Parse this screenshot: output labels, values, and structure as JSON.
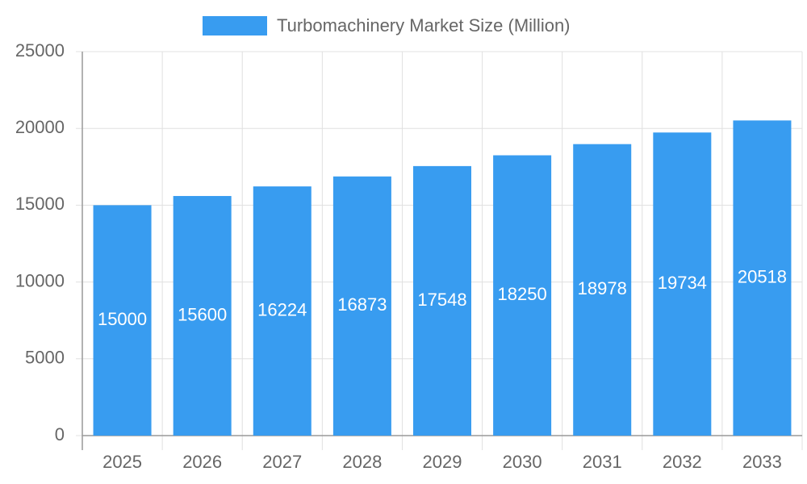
{
  "chart_data": {
    "type": "bar",
    "categories": [
      "2025",
      "2026",
      "2027",
      "2028",
      "2029",
      "2030",
      "2031",
      "2032",
      "2033"
    ],
    "series": [
      {
        "name": "Turbomachinery Market Size (Million)",
        "color": "#389cf0",
        "values": [
          15000,
          15600,
          16224,
          16873,
          17548,
          18250,
          18978,
          19734,
          20518
        ]
      }
    ],
    "ylim": [
      0,
      25000
    ],
    "yticks": [
      0,
      5000,
      10000,
      15000,
      20000,
      25000
    ],
    "grid": true
  }
}
